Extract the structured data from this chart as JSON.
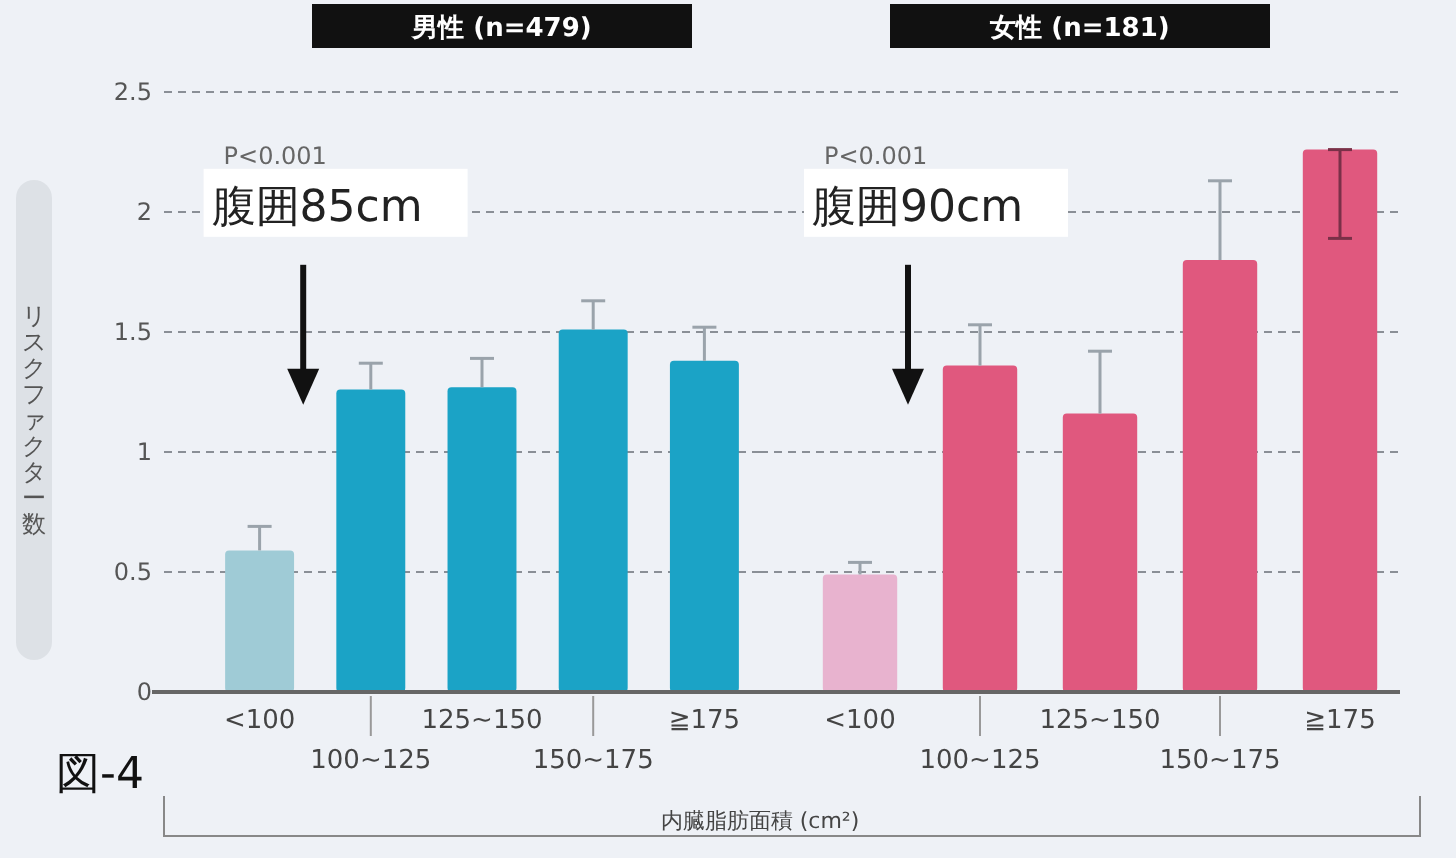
{
  "chart_data": [
    {
      "type": "bar",
      "title": "男性 (n=479)",
      "ylabel": "リスクファクター数",
      "xlabel": "内臓脂肪面積 (cm²)",
      "categories": [
        "<100",
        "100~125",
        "125~150",
        "150~175",
        "≧175"
      ],
      "values": [
        0.59,
        1.26,
        1.27,
        1.51,
        1.38
      ],
      "colors": [
        "#9fcbd6",
        "#1ba3c6",
        "#1ba3c6",
        "#1ba3c6",
        "#1ba3c6"
      ],
      "errors": [
        [
          0.59,
          0.69
        ],
        [
          1.26,
          1.37
        ],
        [
          1.27,
          1.39
        ],
        [
          1.51,
          1.63
        ],
        [
          1.38,
          1.52
        ]
      ],
      "ylim": [
        0,
        2.5
      ],
      "yticks": [
        0,
        0.5,
        1.0,
        1.5,
        2.0,
        2.5
      ],
      "grid": "y",
      "annotations": [
        "P<0.001",
        "腹囲85cm",
        "図-4"
      ]
    },
    {
      "type": "bar",
      "title": "女性 (n=181)",
      "categories": [
        "<100",
        "100~125",
        "125~150",
        "150~175",
        "≧175"
      ],
      "values": [
        0.49,
        1.36,
        1.16,
        1.8,
        2.26
      ],
      "colors": [
        "#e8b3cf",
        "#e0587e",
        "#e0587e",
        "#e0587e",
        "#e0587e"
      ],
      "errors": [
        [
          0.49,
          0.54
        ],
        [
          1.36,
          1.53
        ],
        [
          1.16,
          1.42
        ],
        [
          1.8,
          2.13
        ],
        [
          1.89,
          2.26
        ]
      ],
      "ylim": [
        0,
        2.5
      ],
      "yticks": [
        0,
        0.5,
        1.0,
        1.5,
        2.0,
        2.5
      ],
      "grid": "y",
      "tick_labels": "x",
      "annotations": [
        "P<0.001",
        "腹囲90cm"
      ]
    }
  ]
}
